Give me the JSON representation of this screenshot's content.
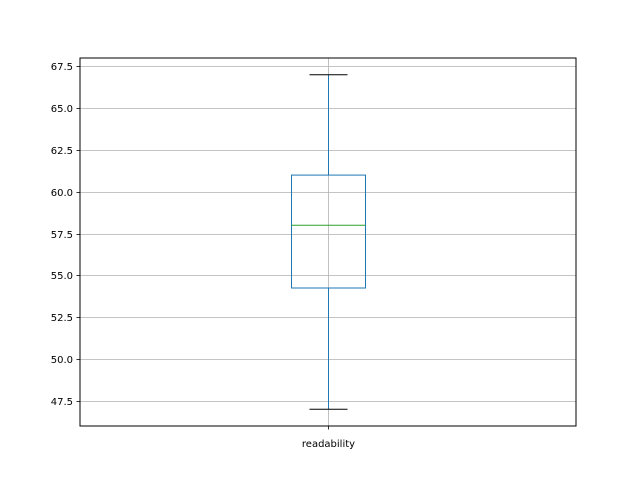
{
  "chart_data": {
    "type": "boxplot",
    "title": "",
    "xlabel": "",
    "ylabel": "",
    "categories": [
      "readability"
    ],
    "boxes": [
      {
        "label": "readability",
        "whisker_low": 47,
        "q1": 54.25,
        "median": 58,
        "q3": 61,
        "whisker_high": 67
      }
    ],
    "ylim": [
      46,
      68
    ],
    "yticks": [
      47.5,
      50.0,
      52.5,
      55.0,
      57.5,
      60.0,
      62.5,
      65.0,
      67.5
    ],
    "ytick_labels": [
      "47.5",
      "50.0",
      "52.5",
      "55.0",
      "57.5",
      "60.0",
      "62.5",
      "65.0",
      "67.5"
    ],
    "grid": true,
    "colors": {
      "box": "#1f77b4",
      "median": "#2ca02c",
      "caps": "#000000",
      "grid": "#b0b0b0"
    }
  }
}
